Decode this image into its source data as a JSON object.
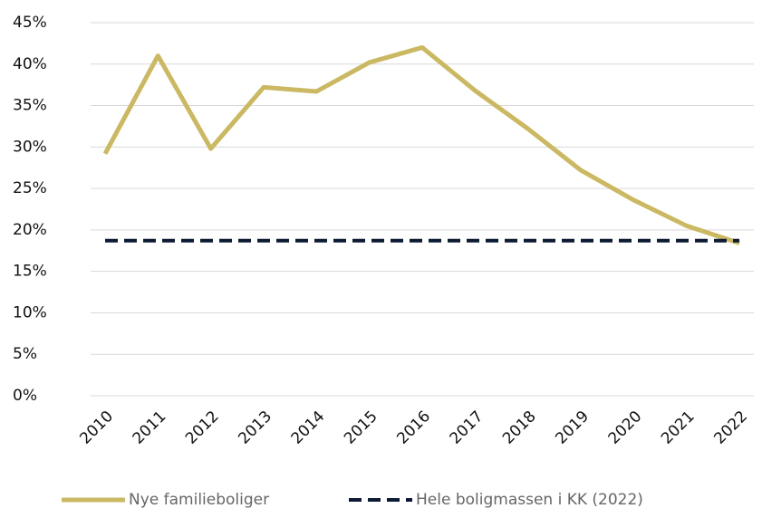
{
  "chart_data": {
    "type": "line",
    "x": [
      "2010",
      "2011",
      "2012",
      "2013",
      "2014",
      "2015",
      "2016",
      "2017",
      "2018",
      "2019",
      "2020",
      "2021",
      "2022"
    ],
    "series": [
      {
        "name": "Nye familieboliger",
        "color": "#cbb863",
        "dash": false,
        "values": [
          29.2,
          41,
          29.8,
          37.2,
          36.7,
          40.2,
          42,
          36.8,
          32.2,
          27.2,
          23.6,
          20.5,
          18.4
        ]
      },
      {
        "name": "Hele boligmassen i KK (2022)",
        "color": "#0d1a33",
        "dash": true,
        "values": [
          18.7,
          18.7,
          18.7,
          18.7,
          18.7,
          18.7,
          18.7,
          18.7,
          18.7,
          18.7,
          18.7,
          18.7,
          18.7
        ]
      }
    ],
    "ylim": [
      0,
      45
    ],
    "yticks": [
      {
        "value": 0,
        "label": "0%"
      },
      {
        "value": 5,
        "label": "5%"
      },
      {
        "value": 10,
        "label": "10%"
      },
      {
        "value": 15,
        "label": "15%"
      },
      {
        "value": 20,
        "label": "20%"
      },
      {
        "value": 25,
        "label": "25%"
      },
      {
        "value": 30,
        "label": "30%"
      },
      {
        "value": 35,
        "label": "35%"
      },
      {
        "value": 40,
        "label": "40%"
      },
      {
        "value": 45,
        "label": "45%"
      }
    ],
    "grid": true,
    "legend": "bottom"
  }
}
